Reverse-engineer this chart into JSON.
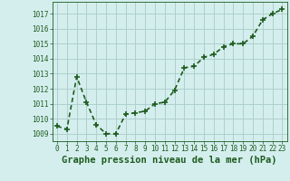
{
  "x": [
    0,
    1,
    2,
    3,
    4,
    5,
    6,
    7,
    8,
    9,
    10,
    11,
    12,
    13,
    14,
    15,
    16,
    17,
    18,
    19,
    20,
    21,
    22,
    23
  ],
  "y": [
    1009.5,
    1009.3,
    1012.8,
    1011.1,
    1009.6,
    1009.0,
    1009.0,
    1010.3,
    1010.4,
    1010.5,
    1011.0,
    1011.1,
    1011.9,
    1013.4,
    1013.5,
    1014.1,
    1014.3,
    1014.8,
    1015.0,
    1015.0,
    1015.5,
    1016.6,
    1017.0,
    1017.3
  ],
  "ylim": [
    1008.5,
    1017.8
  ],
  "yticks": [
    1009,
    1010,
    1011,
    1012,
    1013,
    1014,
    1015,
    1016,
    1017
  ],
  "xticks": [
    0,
    1,
    2,
    3,
    4,
    5,
    6,
    7,
    8,
    9,
    10,
    11,
    12,
    13,
    14,
    15,
    16,
    17,
    18,
    19,
    20,
    21,
    22,
    23
  ],
  "xlabel": "Graphe pression niveau de la mer (hPa)",
  "line_color": "#1e5c1e",
  "marker": "+",
  "marker_size": 4,
  "bg_color": "#d4eeee",
  "grid_color": "#aed0cc",
  "tick_color": "#1e5c1e",
  "label_color": "#1e5c1e",
  "xlabel_fontsize": 7.5,
  "tick_fontsize": 5.5,
  "line_width": 1.2
}
